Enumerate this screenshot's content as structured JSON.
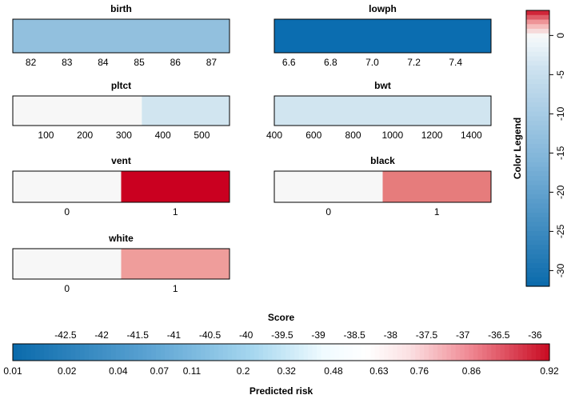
{
  "chart_data": {
    "type": "heatmap",
    "description_panels": [
      {
        "id": "birth",
        "title": "birth",
        "axis": {
          "min": 81.5,
          "max": 87.5,
          "ticks": [
            82,
            83,
            84,
            85,
            86,
            87
          ]
        },
        "segments": [
          {
            "from": 81.5,
            "to": 87.5,
            "color": "#92c0de"
          }
        ]
      },
      {
        "id": "lowph",
        "title": "lowph",
        "axis": {
          "min": 6.53,
          "max": 7.57,
          "ticks": [
            "6.6",
            "6.8",
            "7.0",
            "7.2",
            "7.4"
          ]
        },
        "segments": [
          {
            "from": 6.53,
            "to": 7.57,
            "color": "#0b6db0"
          }
        ]
      },
      {
        "id": "pltct",
        "title": "pltct",
        "axis": {
          "min": 15,
          "max": 571,
          "ticks": [
            100,
            200,
            300,
            400,
            500
          ]
        },
        "segments": [
          {
            "from": 15,
            "to": 346,
            "color": "#f7f7f7"
          },
          {
            "from": 346,
            "to": 571,
            "color": "#d1e5f0"
          }
        ]
      },
      {
        "id": "bwt",
        "title": "bwt",
        "axis": {
          "min": 400,
          "max": 1500,
          "ticks": [
            400,
            600,
            800,
            1000,
            1200,
            1400
          ]
        },
        "segments": [
          {
            "from": 400,
            "to": 1500,
            "color": "#d1e5f0"
          }
        ]
      },
      {
        "id": "vent",
        "title": "vent",
        "axis": {
          "min": -0.5,
          "max": 1.5,
          "ticks": [
            0,
            1
          ]
        },
        "segments": [
          {
            "from": -0.5,
            "to": 0.5,
            "color": "#f7f7f7"
          },
          {
            "from": 0.5,
            "to": 1.5,
            "color": "#ca0020"
          }
        ]
      },
      {
        "id": "black",
        "title": "black",
        "axis": {
          "min": -0.5,
          "max": 1.5,
          "ticks": [
            0,
            1
          ]
        },
        "segments": [
          {
            "from": -0.5,
            "to": 0.5,
            "color": "#f7f7f7"
          },
          {
            "from": 0.5,
            "to": 1.5,
            "color": "#e67c7c"
          }
        ]
      },
      {
        "id": "white",
        "title": "white",
        "axis": {
          "min": -0.5,
          "max": 1.5,
          "ticks": [
            0,
            1
          ]
        },
        "segments": [
          {
            "from": -0.5,
            "to": 0.5,
            "color": "#f7f7f7"
          },
          {
            "from": 0.5,
            "to": 1.5,
            "color": "#ef9d9b"
          }
        ]
      }
    ],
    "color_legend": {
      "title": "Color Legend",
      "range": [
        -32,
        3.2
      ],
      "ticks": [
        0,
        -5,
        -10,
        -15,
        -20,
        -25,
        -30
      ],
      "palette_stops": [
        {
          "value": -32,
          "color": "#0a6aab"
        },
        {
          "value": -16,
          "color": "#7fb4d9"
        },
        {
          "value": -4,
          "color": "#cfe3f0"
        },
        {
          "value": -1,
          "color": "#eef5fa"
        },
        {
          "value": 0,
          "color": "#f7f7f7"
        },
        {
          "value": 1.5,
          "color": "#f4aaaa"
        },
        {
          "value": 3.2,
          "color": "#c90a22"
        }
      ]
    },
    "score_bar": {
      "top_axis_title": "Score",
      "bottom_axis_title": "Predicted risk",
      "score_range": [
        -43.23,
        -35.8
      ],
      "score_ticks": [
        "-42.5",
        "-42",
        "-41.5",
        "-41",
        "-40.5",
        "-40",
        "-39.5",
        "-39",
        "-38.5",
        "-38",
        "-37.5",
        "-37",
        "-36.5",
        "-36"
      ],
      "risk_ticks": [
        {
          "label": "0.01",
          "score": -43.23
        },
        {
          "label": "0.02",
          "score": -42.48
        },
        {
          "label": "0.04",
          "score": -41.77
        },
        {
          "label": "0.07",
          "score": -41.2
        },
        {
          "label": "0.11",
          "score": -40.75
        },
        {
          "label": "0.2",
          "score": -40.04
        },
        {
          "label": "0.32",
          "score": -39.44
        },
        {
          "label": "0.48",
          "score": -38.79
        },
        {
          "label": "0.63",
          "score": -38.16
        },
        {
          "label": "0.76",
          "score": -37.6
        },
        {
          "label": "0.86",
          "score": -36.88
        },
        {
          "label": "0.92",
          "score": -35.8
        }
      ],
      "n_cells": 120,
      "palette_stops": [
        {
          "t": 0.0,
          "color": "#0a6aab"
        },
        {
          "t": 0.25,
          "color": "#5aa2d2"
        },
        {
          "t": 0.45,
          "color": "#a8d8f0"
        },
        {
          "t": 0.58,
          "color": "#f0fbff"
        },
        {
          "t": 0.66,
          "color": "#ffffff"
        },
        {
          "t": 0.74,
          "color": "#fbe0e2"
        },
        {
          "t": 0.85,
          "color": "#f08a94"
        },
        {
          "t": 1.0,
          "color": "#c90a22"
        }
      ]
    }
  }
}
